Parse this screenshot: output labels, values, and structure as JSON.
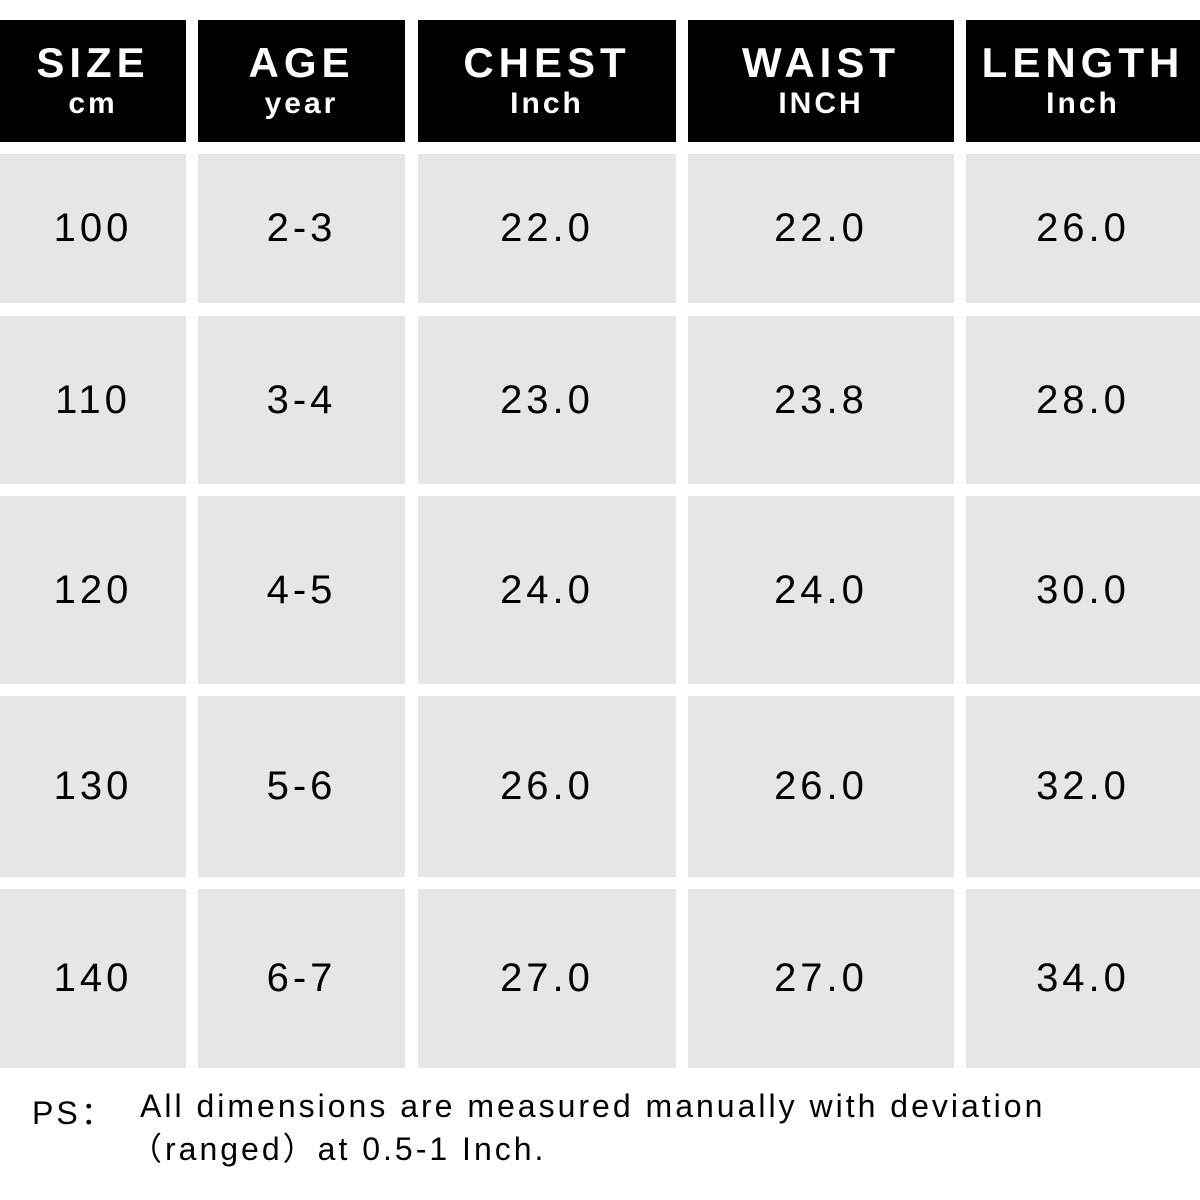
{
  "table": {
    "header": [
      {
        "title": "SIZE",
        "unit": "cm"
      },
      {
        "title": "AGE",
        "unit": "year"
      },
      {
        "title": "CHEST",
        "unit": "Inch"
      },
      {
        "title": "WAIST",
        "unit": "INCH"
      },
      {
        "title": "LENGTH",
        "unit": "Inch"
      }
    ],
    "rows": [
      [
        "100",
        "2-3",
        "22.0",
        "22.0",
        "26.0"
      ],
      [
        "110",
        "3-4",
        "23.0",
        "23.8",
        "28.0"
      ],
      [
        "120",
        "4-5",
        "24.0",
        "24.0",
        "30.0"
      ],
      [
        "130",
        "5-6",
        "26.0",
        "26.0",
        "32.0"
      ],
      [
        "140",
        "6-7",
        "27.0",
        "27.0",
        "34.0"
      ]
    ]
  },
  "note": {
    "label": "PS：",
    "lines": [
      "All dimensions are measured manually with deviation",
      "（ranged）at 0.5-1 Inch."
    ]
  }
}
